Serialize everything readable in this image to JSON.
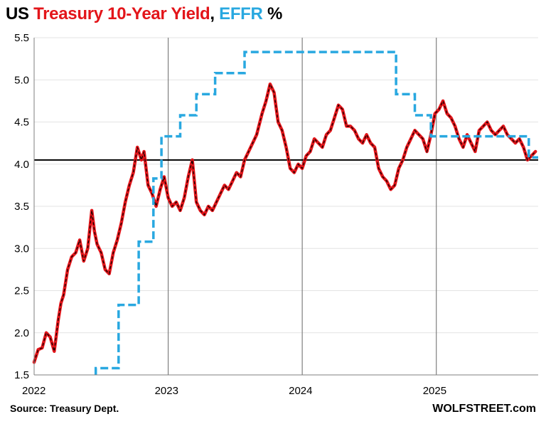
{
  "title": {
    "part1": "US ",
    "part2": "Treasury 10-Year Yield",
    "part3": ", ",
    "part4": "EFFR",
    "part5": " %",
    "color_treasury": "#e3151a",
    "color_effr": "#29a8e0"
  },
  "source": "Source: Treasury Dept.",
  "brand": "WOLFSTREET.com",
  "chart_data": {
    "type": "line",
    "title": "US Treasury 10-Year Yield, EFFR %",
    "xlabel": "",
    "ylabel": "",
    "ylim": [
      1.5,
      5.5
    ],
    "xlim": [
      2022.0,
      2025.76
    ],
    "y_ticks": [
      "1.5",
      "2.0",
      "2.5",
      "3.0",
      "3.5",
      "4.0",
      "4.5",
      "5.0",
      "5.5"
    ],
    "x_ticks": [
      "2022",
      "2023",
      "2024",
      "2025"
    ],
    "reference_line": 4.05,
    "grid": "vertical lines at year boundaries",
    "series": [
      {
        "name": "Treasury 10-Year Yield",
        "color": "#e3151a",
        "style": "solid",
        "x": [
          2022.0,
          2022.03,
          2022.06,
          2022.09,
          2022.12,
          2022.15,
          2022.18,
          2022.2,
          2022.22,
          2022.25,
          2022.28,
          2022.31,
          2022.34,
          2022.37,
          2022.4,
          2022.43,
          2022.45,
          2022.47,
          2022.5,
          2022.53,
          2022.56,
          2022.59,
          2022.62,
          2022.65,
          2022.68,
          2022.71,
          2022.74,
          2022.77,
          2022.8,
          2022.82,
          2022.85,
          2022.88,
          2022.91,
          2022.94,
          2022.97,
          2023.0,
          2023.03,
          2023.06,
          2023.09,
          2023.12,
          2023.15,
          2023.18,
          2023.21,
          2023.24,
          2023.27,
          2023.3,
          2023.33,
          2023.36,
          2023.39,
          2023.42,
          2023.45,
          2023.48,
          2023.51,
          2023.54,
          2023.57,
          2023.6,
          2023.63,
          2023.66,
          2023.7,
          2023.73,
          2023.76,
          2023.79,
          2023.82,
          2023.85,
          2023.88,
          2023.91,
          2023.94,
          2023.97,
          2024.0,
          2024.03,
          2024.06,
          2024.09,
          2024.12,
          2024.15,
          2024.18,
          2024.21,
          2024.24,
          2024.27,
          2024.3,
          2024.33,
          2024.36,
          2024.39,
          2024.42,
          2024.45,
          2024.48,
          2024.51,
          2024.54,
          2024.57,
          2024.6,
          2024.63,
          2024.66,
          2024.69,
          2024.72,
          2024.75,
          2024.78,
          2024.81,
          2024.84,
          2024.87,
          2024.9,
          2024.93,
          2024.96,
          2024.99,
          2025.02,
          2025.05,
          2025.08,
          2025.11,
          2025.14,
          2025.17,
          2025.2,
          2025.23,
          2025.26,
          2025.29,
          2025.32,
          2025.35,
          2025.38,
          2025.41,
          2025.44,
          2025.47,
          2025.5,
          2025.53,
          2025.56,
          2025.59,
          2025.62,
          2025.65,
          2025.68,
          2025.71,
          2025.74
        ],
        "values": [
          1.65,
          1.8,
          1.82,
          2.0,
          1.95,
          1.78,
          2.15,
          2.35,
          2.45,
          2.75,
          2.9,
          2.95,
          3.1,
          2.85,
          3.0,
          3.45,
          3.2,
          3.05,
          2.95,
          2.75,
          2.7,
          2.95,
          3.1,
          3.3,
          3.55,
          3.75,
          3.9,
          4.2,
          4.05,
          4.15,
          3.75,
          3.65,
          3.5,
          3.7,
          3.85,
          3.6,
          3.5,
          3.55,
          3.45,
          3.6,
          3.85,
          4.05,
          3.55,
          3.45,
          3.4,
          3.5,
          3.45,
          3.55,
          3.65,
          3.75,
          3.7,
          3.8,
          3.9,
          3.85,
          4.05,
          4.15,
          4.25,
          4.35,
          4.6,
          4.75,
          4.95,
          4.85,
          4.5,
          4.4,
          4.2,
          3.95,
          3.9,
          4.0,
          3.95,
          4.1,
          4.15,
          4.3,
          4.25,
          4.2,
          4.35,
          4.4,
          4.55,
          4.7,
          4.65,
          4.45,
          4.45,
          4.4,
          4.3,
          4.25,
          4.35,
          4.25,
          4.2,
          3.95,
          3.85,
          3.8,
          3.7,
          3.75,
          3.95,
          4.05,
          4.2,
          4.3,
          4.4,
          4.35,
          4.3,
          4.15,
          4.35,
          4.6,
          4.65,
          4.75,
          4.6,
          4.55,
          4.45,
          4.3,
          4.2,
          4.35,
          4.25,
          4.15,
          4.4,
          4.45,
          4.5,
          4.4,
          4.35,
          4.4,
          4.45,
          4.35,
          4.3,
          4.25,
          4.3,
          4.2,
          4.05,
          4.1,
          4.15
        ]
      },
      {
        "name": "EFFR",
        "color": "#29a8e0",
        "style": "dashed",
        "x": [
          2022.46,
          2022.46,
          2022.63,
          2022.63,
          2022.78,
          2022.78,
          2022.89,
          2022.89,
          2022.95,
          2022.95,
          2023.09,
          2023.09,
          2023.21,
          2023.21,
          2023.35,
          2023.35,
          2023.57,
          2023.57,
          2024.7,
          2024.7,
          2024.84,
          2024.84,
          2024.96,
          2024.96,
          2025.69,
          2025.69,
          2025.76
        ],
        "values": [
          1.5,
          1.58,
          1.58,
          2.33,
          2.33,
          3.08,
          3.08,
          3.83,
          3.83,
          4.33,
          4.33,
          4.58,
          4.58,
          4.83,
          4.83,
          5.08,
          5.08,
          5.33,
          5.33,
          4.83,
          4.83,
          4.58,
          4.58,
          4.33,
          4.33,
          4.08,
          4.08
        ]
      }
    ]
  }
}
